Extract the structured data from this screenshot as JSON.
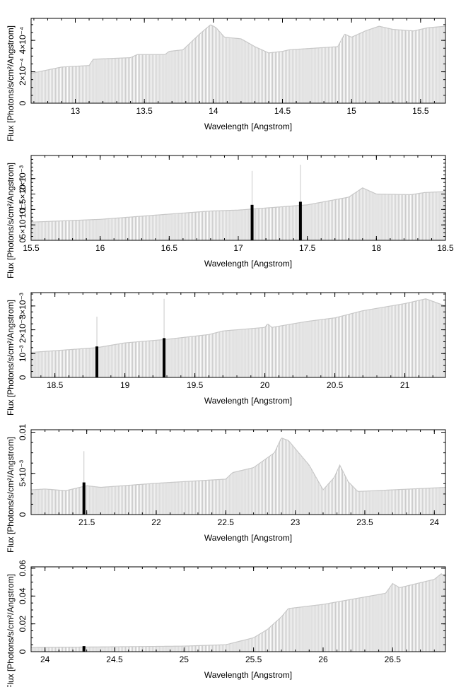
{
  "colors": {
    "bars": "#c8c8c8",
    "lines": "#000000",
    "strong_bars": "#000000"
  },
  "chart_data": [
    {
      "type": "bar",
      "xlabel": "Wavelength [Angstrom]",
      "ylabel": "Flux [Photons/s/cm²/Angstrom]",
      "xlim": [
        12.68,
        15.68
      ],
      "ylim": [
        0,
        0.00054
      ],
      "xticks": [
        {
          "v": 13,
          "label": "13"
        },
        {
          "v": 13.5,
          "label": "13.5"
        },
        {
          "v": 14,
          "label": "14"
        },
        {
          "v": 14.5,
          "label": "14.5"
        },
        {
          "v": 15,
          "label": "15"
        },
        {
          "v": 15.5,
          "label": "15.5"
        }
      ],
      "yticks": [
        {
          "v": 0,
          "label": "0"
        },
        {
          "v": 0.0002,
          "label": "2×10⁻⁴"
        },
        {
          "v": 0.0004,
          "label": "4×10⁻⁴"
        }
      ],
      "profile": [
        [
          12.68,
          0.00019
        ],
        [
          12.9,
          0.00023
        ],
        [
          13.1,
          0.00024
        ],
        [
          13.13,
          0.00028
        ],
        [
          13.4,
          0.00029
        ],
        [
          13.45,
          0.00031
        ],
        [
          13.65,
          0.00031
        ],
        [
          13.68,
          0.00033
        ],
        [
          13.78,
          0.00034
        ],
        [
          13.9,
          0.00044
        ],
        [
          13.98,
          0.0005
        ],
        [
          14.02,
          0.00048
        ],
        [
          14.08,
          0.00042
        ],
        [
          14.2,
          0.00041
        ],
        [
          14.3,
          0.00036
        ],
        [
          14.4,
          0.00032
        ],
        [
          14.5,
          0.00033
        ],
        [
          14.55,
          0.00034
        ],
        [
          14.9,
          0.00036
        ],
        [
          14.95,
          0.00044
        ],
        [
          15.0,
          0.00042
        ],
        [
          15.1,
          0.00046
        ],
        [
          15.2,
          0.00049
        ],
        [
          15.3,
          0.00047
        ],
        [
          15.45,
          0.00046
        ],
        [
          15.55,
          0.00048
        ],
        [
          15.68,
          0.00049
        ]
      ],
      "strong_lines": []
    },
    {
      "type": "bar",
      "xlabel": "Wavelength [Angstrom]",
      "ylabel": "Flux [Photons/s/cm²/Angstrom]",
      "xlim": [
        15.5,
        18.5
      ],
      "ylim": [
        0,
        0.00275
      ],
      "xticks": [
        {
          "v": 15.5,
          "label": "15.5"
        },
        {
          "v": 16,
          "label": "16"
        },
        {
          "v": 16.5,
          "label": "16.5"
        },
        {
          "v": 17,
          "label": "17"
        },
        {
          "v": 17.5,
          "label": "17.5"
        },
        {
          "v": 18,
          "label": "18"
        },
        {
          "v": 18.5,
          "label": "18.5"
        }
      ],
      "yticks": [
        {
          "v": 0,
          "label": "0"
        },
        {
          "v": 0.0005,
          "label": "5×10⁻⁴"
        },
        {
          "v": 0.001,
          "label": "10⁻³"
        },
        {
          "v": 0.0015,
          "label": "1.5×10⁻³"
        },
        {
          "v": 0.002,
          "label": "2×10⁻³"
        }
      ],
      "profile": [
        [
          15.5,
          0.00059
        ],
        [
          16.0,
          0.00068
        ],
        [
          16.5,
          0.00085
        ],
        [
          16.8,
          0.00095
        ],
        [
          17.0,
          0.00098
        ],
        [
          17.5,
          0.00115
        ],
        [
          17.8,
          0.0014
        ],
        [
          17.9,
          0.0017
        ],
        [
          18.0,
          0.0015
        ],
        [
          18.25,
          0.00148
        ],
        [
          18.35,
          0.00155
        ],
        [
          18.5,
          0.00158
        ]
      ],
      "strong_lines": [
        {
          "x": 17.1,
          "y": 0.00115,
          "line_top": 0.00225
        },
        {
          "x": 17.45,
          "y": 0.00125,
          "line_top": 0.00245
        }
      ]
    },
    {
      "type": "bar",
      "xlabel": "Wavelength [Angstrom]",
      "ylabel": "Flux [Photons/s/cm²/Angstrom]",
      "xlim": [
        18.33,
        21.29
      ],
      "ylim": [
        0,
        0.00356
      ],
      "xticks": [
        {
          "v": 18.5,
          "label": "18.5"
        },
        {
          "v": 19,
          "label": "19"
        },
        {
          "v": 19.5,
          "label": "19.5"
        },
        {
          "v": 20,
          "label": "20"
        },
        {
          "v": 20.5,
          "label": "20.5"
        },
        {
          "v": 21,
          "label": "21"
        }
      ],
      "yticks": [
        {
          "v": 0,
          "label": "0"
        },
        {
          "v": 0.001,
          "label": "10⁻³"
        },
        {
          "v": 0.002,
          "label": "2×10⁻³"
        },
        {
          "v": 0.003,
          "label": "3×10⁻³"
        }
      ],
      "profile": [
        [
          18.33,
          0.00105
        ],
        [
          18.8,
          0.00125
        ],
        [
          19.0,
          0.00145
        ],
        [
          19.3,
          0.0016
        ],
        [
          19.6,
          0.0018
        ],
        [
          19.7,
          0.00195
        ],
        [
          20.0,
          0.0021
        ],
        [
          20.02,
          0.00225
        ],
        [
          20.05,
          0.0021
        ],
        [
          20.3,
          0.00235
        ],
        [
          20.5,
          0.0025
        ],
        [
          20.7,
          0.0028
        ],
        [
          21.0,
          0.0031
        ],
        [
          21.15,
          0.0033
        ],
        [
          21.29,
          0.003
        ]
      ],
      "strong_lines": [
        {
          "x": 18.8,
          "y": 0.0013,
          "line_top": 0.00255
        },
        {
          "x": 19.28,
          "y": 0.00165,
          "line_top": 0.0033
        }
      ]
    },
    {
      "type": "bar",
      "xlabel": "Wavelength [Angstrom]",
      "ylabel": "Flux [Photons/s/cm²/Angstrom]",
      "xlim": [
        21.1,
        24.08
      ],
      "ylim": [
        0,
        0.0103
      ],
      "xticks": [
        {
          "v": 21.5,
          "label": "21.5"
        },
        {
          "v": 22,
          "label": "22"
        },
        {
          "v": 22.5,
          "label": "22.5"
        },
        {
          "v": 23,
          "label": "23"
        },
        {
          "v": 23.5,
          "label": "23.5"
        },
        {
          "v": 24,
          "label": "24"
        }
      ],
      "yticks": [
        {
          "v": 0,
          "label": "0"
        },
        {
          "v": 0.005,
          "label": "5×10⁻³"
        },
        {
          "v": 0.01,
          "label": "0.01"
        }
      ],
      "profile": [
        [
          21.1,
          0.003
        ],
        [
          21.2,
          0.0031
        ],
        [
          21.35,
          0.0029
        ],
        [
          21.5,
          0.0035
        ],
        [
          21.6,
          0.0033
        ],
        [
          22.0,
          0.0038
        ],
        [
          22.5,
          0.0043
        ],
        [
          22.55,
          0.0051
        ],
        [
          22.7,
          0.0057
        ],
        [
          22.85,
          0.0075
        ],
        [
          22.9,
          0.0093
        ],
        [
          22.95,
          0.009
        ],
        [
          23.1,
          0.006
        ],
        [
          23.2,
          0.003
        ],
        [
          23.28,
          0.0045
        ],
        [
          23.32,
          0.006
        ],
        [
          23.38,
          0.004
        ],
        [
          23.45,
          0.0028
        ],
        [
          24.08,
          0.0033
        ]
      ],
      "strong_lines": [
        {
          "x": 21.48,
          "y": 0.0039,
          "line_top": 0.0077
        }
      ]
    },
    {
      "type": "bar",
      "xlabel": "Wavelength [Angstrom]",
      "ylabel": "Flux [Photons/s/cm²/Angstrom]",
      "xlim": [
        23.9,
        26.88
      ],
      "ylim": [
        0,
        0.061
      ],
      "xticks": [
        {
          "v": 24,
          "label": "24"
        },
        {
          "v": 24.5,
          "label": "24.5"
        },
        {
          "v": 25,
          "label": "25"
        },
        {
          "v": 25.5,
          "label": "25.5"
        },
        {
          "v": 26,
          "label": "26"
        },
        {
          "v": 26.5,
          "label": "26.5"
        }
      ],
      "yticks": [
        {
          "v": 0,
          "label": "0"
        },
        {
          "v": 0.02,
          "label": "0.02"
        },
        {
          "v": 0.04,
          "label": "0.04"
        },
        {
          "v": 0.06,
          "label": "0.06"
        }
      ],
      "profile": [
        [
          23.9,
          0.003
        ],
        [
          24.5,
          0.0035
        ],
        [
          25.0,
          0.004
        ],
        [
          25.3,
          0.005
        ],
        [
          25.5,
          0.01
        ],
        [
          25.6,
          0.016
        ],
        [
          25.7,
          0.025
        ],
        [
          25.75,
          0.031
        ],
        [
          26.0,
          0.034
        ],
        [
          26.45,
          0.042
        ],
        [
          26.5,
          0.049
        ],
        [
          26.55,
          0.046
        ],
        [
          26.8,
          0.052
        ],
        [
          26.85,
          0.056
        ],
        [
          26.88,
          0.054
        ]
      ],
      "strong_lines": [
        {
          "x": 24.28,
          "y": 0.004,
          "line_top": 0.004
        }
      ]
    }
  ]
}
